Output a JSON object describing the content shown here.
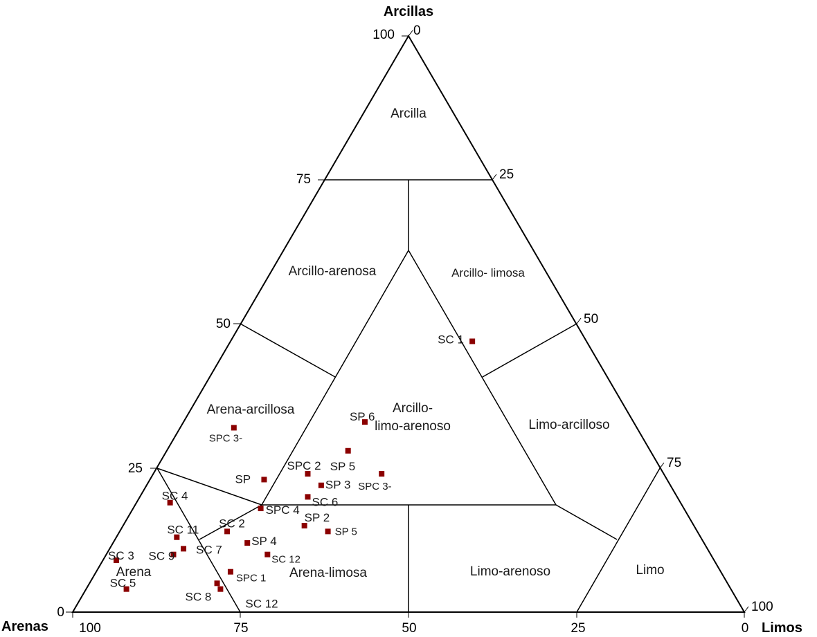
{
  "axes": {
    "top": {
      "title": "Arcillas"
    },
    "left": {
      "title": "Arenas"
    },
    "right": {
      "title": "Limos"
    }
  },
  "left_ticks": [
    "100",
    "75",
    "50",
    "25",
    "0"
  ],
  "right_ticks": [
    "0",
    "25",
    "50",
    "75",
    "100"
  ],
  "bottom_ticks": [
    "100",
    "75",
    "50",
    "25",
    "0"
  ],
  "regions": [
    {
      "id": "arcilla",
      "lines": [
        "Arcilla"
      ]
    },
    {
      "id": "arcillo-arenosa",
      "lines": [
        "Arcillo-arenosa"
      ]
    },
    {
      "id": "arcillo-limosa",
      "lines": [
        "Arcillo- limosa"
      ]
    },
    {
      "id": "arena-arcillosa",
      "lines": [
        "Arena-arcillosa"
      ]
    },
    {
      "id": "arcillo-limo-arenoso",
      "lines": [
        "Arcillo-",
        "limo-arenoso"
      ]
    },
    {
      "id": "limo-arcilloso",
      "lines": [
        "Limo-arcilloso"
      ]
    },
    {
      "id": "arena",
      "lines": [
        "Arena"
      ]
    },
    {
      "id": "arena-limosa",
      "lines": [
        "Arena-limosa"
      ]
    },
    {
      "id": "limo-arenoso",
      "lines": [
        "Limo-arenoso"
      ]
    },
    {
      "id": "limo",
      "lines": [
        "Limo"
      ]
    }
  ],
  "chart_data": {
    "type": "scatter",
    "components": [
      "Arcillas",
      "Arenas",
      "Limos"
    ],
    "samples": [
      {
        "label": "SC 1",
        "arenas": 17,
        "limos": 36,
        "arcillas": 47
      },
      {
        "label": "SP 6",
        "arenas": 40,
        "limos": 27,
        "arcillas": 33
      },
      {
        "label": "SPC 3-",
        "arenas": 60,
        "limos": 8,
        "arcillas": 32
      },
      {
        "label": "SP 5",
        "arenas": 45,
        "limos": 27,
        "arcillas": 28
      },
      {
        "label": "SPC 2",
        "arenas": 53,
        "limos": 23,
        "arcillas": 24
      },
      {
        "label": "SP",
        "arenas": 60,
        "limos": 17,
        "arcillas": 23
      },
      {
        "label": "SP 3",
        "arenas": 52,
        "limos": 26,
        "arcillas": 22
      },
      {
        "label": "SPC 3-",
        "arenas": 42,
        "limos": 34,
        "arcillas": 24
      },
      {
        "label": "SC 4",
        "arenas": 76,
        "limos": 5,
        "arcillas": 19
      },
      {
        "label": "SC 6",
        "arenas": 55,
        "limos": 25,
        "arcillas": 20
      },
      {
        "label": "SPC 4",
        "arenas": 63,
        "limos": 19,
        "arcillas": 18
      },
      {
        "label": "SC 11",
        "arenas": 78,
        "limos": 9,
        "arcillas": 13
      },
      {
        "label": "SC 2",
        "arenas": 70,
        "limos": 16,
        "arcillas": 14
      },
      {
        "label": "SP 2",
        "arenas": 58,
        "limos": 27,
        "arcillas": 15
      },
      {
        "label": "SP 4",
        "arenas": 68,
        "limos": 20,
        "arcillas": 12
      },
      {
        "label": "SP 5",
        "arenas": 55,
        "limos": 31,
        "arcillas": 14
      },
      {
        "label": "SC 3",
        "arenas": 89,
        "limos": 2,
        "arcillas": 9
      },
      {
        "label": "SC 7",
        "arenas": 78,
        "limos": 11,
        "arcillas": 11
      },
      {
        "label": "SC 12",
        "arenas": 66,
        "limos": 24,
        "arcillas": 10
      },
      {
        "label": "SC 9",
        "arenas": 80,
        "limos": 10,
        "arcillas": 10
      },
      {
        "label": "SPC 1",
        "arenas": 73,
        "limos": 20,
        "arcillas": 7
      },
      {
        "label": "SC 8",
        "arenas": 76,
        "limos": 19,
        "arcillas": 5
      },
      {
        "label": "SC 12",
        "arenas": 76,
        "limos": 20,
        "arcillas": 4
      },
      {
        "label": "SC 5",
        "arenas": 90,
        "limos": 6,
        "arcillas": 4
      }
    ],
    "grid": false
  },
  "colors": {
    "marker": "#8b0000",
    "line": "#000000"
  }
}
